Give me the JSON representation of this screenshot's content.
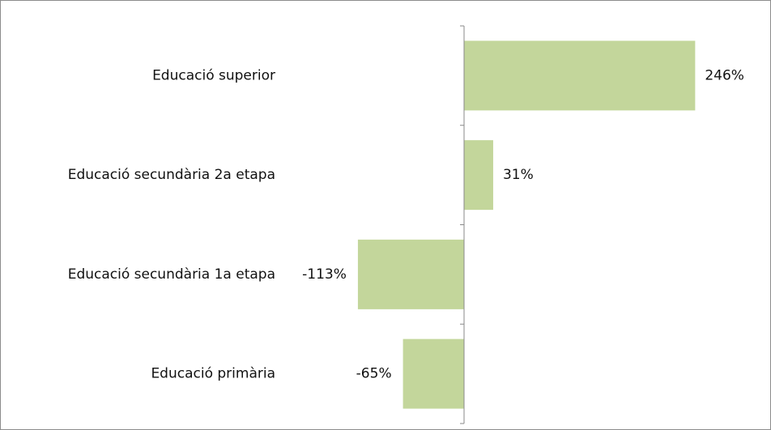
{
  "chart_data": {
    "type": "hbar",
    "categories": [
      "Educació superior",
      "Educació secundària 2a etapa",
      "Educació secundària 1a etapa",
      "Educació primària"
    ],
    "values": [
      246,
      31,
      -113,
      -65
    ],
    "value_labels": [
      "246%",
      "31%",
      "-113%",
      "-65%"
    ],
    "color": "#c3d69b",
    "xlim": [
      -200,
      300
    ]
  }
}
